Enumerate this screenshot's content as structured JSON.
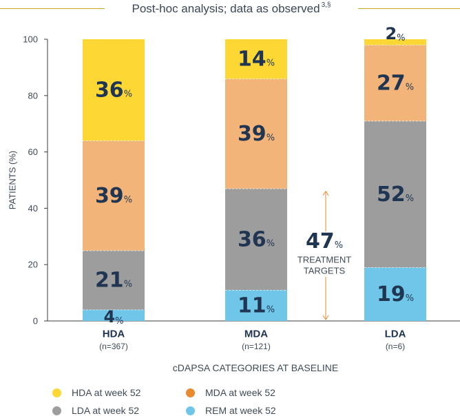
{
  "header": {
    "title": "Post-hoc analysis; data as observed",
    "superscript": "3,§"
  },
  "chart_data": {
    "type": "bar",
    "stacked": true,
    "ylabel": "PATIENTS (%)",
    "xlabel": "cDAPSA CATEGORIES AT BASELINE",
    "ylim": [
      0,
      100
    ],
    "yticks": [
      0,
      20,
      40,
      60,
      80,
      100
    ],
    "grid": false,
    "categories": [
      "HDA",
      "MDA",
      "LDA"
    ],
    "category_n": [
      "(n=367)",
      "(n=121)",
      "(n=6)"
    ],
    "series": [
      {
        "name": "REM at week 52",
        "color": "#6fc6e8",
        "values": [
          4,
          11,
          19
        ]
      },
      {
        "name": "LDA at week 52",
        "color": "#9d9d9d",
        "values": [
          21,
          36,
          52
        ]
      },
      {
        "name": "MDA at week 52",
        "color": "#f2b479",
        "values": [
          39,
          39,
          27
        ]
      },
      {
        "name": "HDA at week 52",
        "color": "#fdd835",
        "values": [
          36,
          14,
          2
        ]
      }
    ],
    "annotation": {
      "value": "47",
      "unit": "%",
      "text_line1": "TREATMENT",
      "text_line2": "TARGETS",
      "range": [
        0,
        47
      ],
      "color": "#e88a2e"
    }
  },
  "legend": {
    "items": [
      {
        "label": "HDA at week 52",
        "color": "#fdd835"
      },
      {
        "label": "MDA at week 52",
        "color": "#e88a2e"
      },
      {
        "label": "LDA at week 52",
        "color": "#9d9d9d"
      },
      {
        "label": "REM at week 52",
        "color": "#6fc6e8"
      }
    ]
  },
  "colors": {
    "text_dark": "#1f3552",
    "axis": "#3b3b3b"
  }
}
